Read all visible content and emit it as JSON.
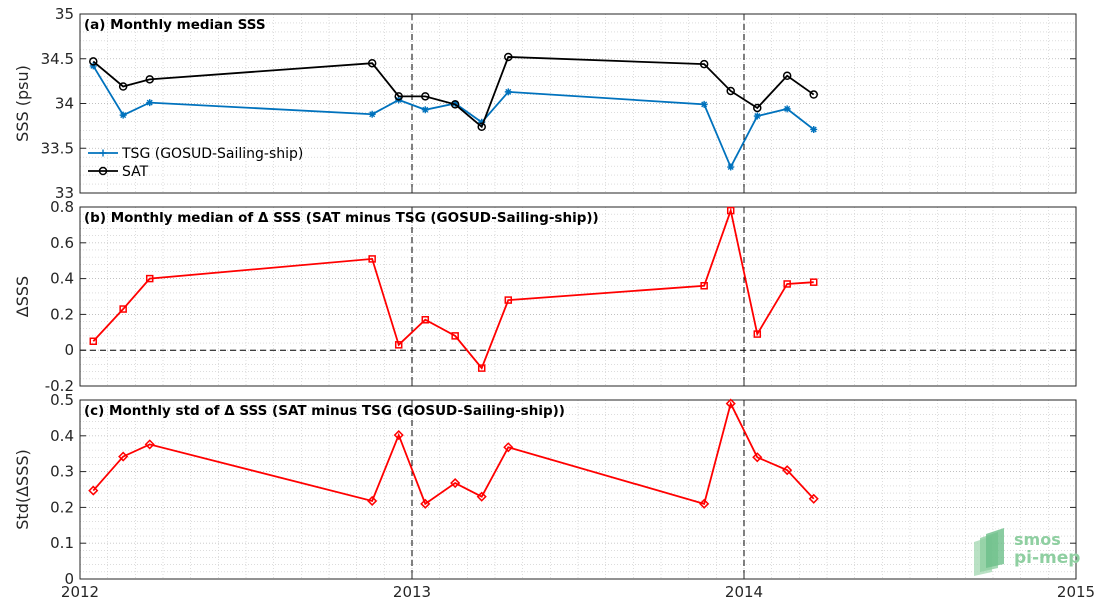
{
  "colors": {
    "tsg": "#0072bd",
    "sat": "#000000",
    "diff": "#ff0000",
    "grid": "#c8c8c8",
    "axis": "#262626",
    "logo_green": "#6dbf8a"
  },
  "logo": {
    "line1": "smos",
    "line2": "pi-mep"
  },
  "chart_data": [
    {
      "type": "line",
      "title": "(a) Monthly median SSS",
      "ylabel": "SSS (psu)",
      "xlim": [
        2012,
        2015
      ],
      "ylim": [
        33,
        35
      ],
      "yticks": [
        33,
        33.5,
        34,
        34.5,
        35
      ],
      "ytick_labels": [
        "33",
        "33.5",
        "34",
        "34.5",
        "35"
      ],
      "x": [
        2012.04,
        2012.13,
        2012.21,
        2012.88,
        2012.96,
        2013.04,
        2013.13,
        2013.21,
        2013.29,
        2013.88,
        2013.96,
        2014.04,
        2014.13,
        2014.21
      ],
      "series": [
        {
          "name": "TSG (GOSUD-Sailing-ship)",
          "marker": "asterisk",
          "values": [
            34.42,
            33.87,
            34.01,
            33.88,
            34.04,
            33.93,
            34.0,
            33.79,
            34.13,
            33.99,
            33.29,
            33.86,
            33.94,
            33.71
          ]
        },
        {
          "name": "SAT",
          "marker": "circle",
          "values": [
            34.47,
            34.19,
            34.27,
            34.45,
            34.08,
            34.08,
            33.99,
            33.74,
            34.52,
            34.44,
            34.14,
            33.95,
            34.31,
            34.1
          ]
        }
      ],
      "legend": "bottom-left",
      "grid": true,
      "vlines": [
        2013,
        2014
      ]
    },
    {
      "type": "line",
      "title": "(b) Monthly median of Δ SSS (SAT minus TSG (GOSUD-Sailing-ship))",
      "ylabel": "ΔSSS",
      "xlim": [
        2012,
        2015
      ],
      "ylim": [
        -0.2,
        0.8
      ],
      "yticks": [
        -0.2,
        0,
        0.2,
        0.4,
        0.6,
        0.8
      ],
      "ytick_labels": [
        "-0.2",
        "0",
        "0.2",
        "0.4",
        "0.6",
        "0.8"
      ],
      "x": [
        2012.04,
        2012.13,
        2012.21,
        2012.88,
        2012.96,
        2013.04,
        2013.13,
        2013.21,
        2013.29,
        2013.88,
        2013.96,
        2014.04,
        2014.13,
        2014.21
      ],
      "series": [
        {
          "marker": "square",
          "values": [
            0.05,
            0.23,
            0.4,
            0.51,
            0.03,
            0.17,
            0.08,
            -0.1,
            0.28,
            0.36,
            0.78,
            0.09,
            0.37,
            0.38
          ]
        }
      ],
      "grid": true,
      "hline": 0,
      "vlines": [
        2013,
        2014
      ]
    },
    {
      "type": "line",
      "title": "(c) Monthly std of Δ SSS (SAT minus TSG (GOSUD-Sailing-ship))",
      "ylabel": "Std(ΔSSS)",
      "xlabel": "",
      "xlim": [
        2012,
        2015
      ],
      "xticks": [
        2012,
        2013,
        2014,
        2015
      ],
      "xtick_labels": [
        "2012",
        "2013",
        "2014",
        "2015"
      ],
      "ylim": [
        0,
        0.5
      ],
      "yticks": [
        0,
        0.1,
        0.2,
        0.3,
        0.4,
        0.5
      ],
      "ytick_labels": [
        "0",
        "0.1",
        "0.2",
        "0.3",
        "0.4",
        "0.5"
      ],
      "x": [
        2012.04,
        2012.13,
        2012.21,
        2012.88,
        2012.96,
        2013.04,
        2013.13,
        2013.21,
        2013.29,
        2013.88,
        2013.96,
        2014.04,
        2014.13,
        2014.21
      ],
      "series": [
        {
          "marker": "diamond",
          "values": [
            0.247,
            0.342,
            0.376,
            0.218,
            0.402,
            0.21,
            0.268,
            0.23,
            0.368,
            0.21,
            0.49,
            0.34,
            0.304,
            0.224
          ]
        }
      ],
      "grid": true,
      "vlines": [
        2013,
        2014
      ]
    }
  ]
}
